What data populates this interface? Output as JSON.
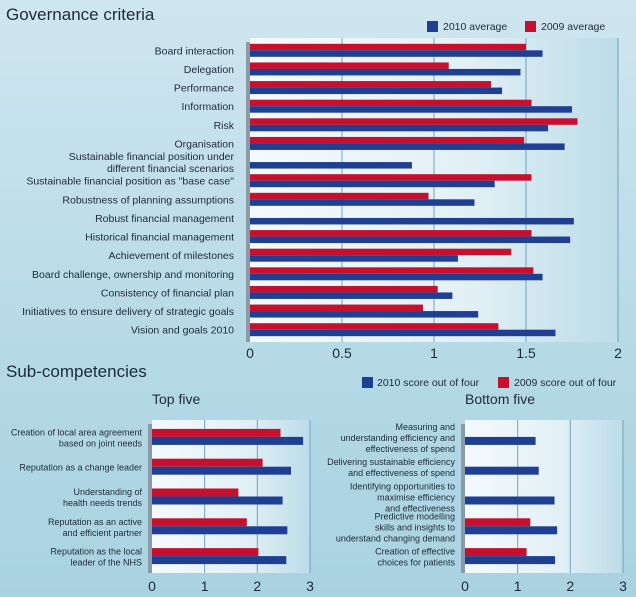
{
  "colors": {
    "2010": "#1f3f93",
    "2009": "#c8102e"
  },
  "chart_data": [
    {
      "type": "bar",
      "orientation": "horizontal",
      "title": "Governance criteria",
      "legend": [
        "2010 average",
        "2009 average"
      ],
      "legend_position": "top-right",
      "xlim": [
        0,
        2
      ],
      "xticks": [
        "0",
        "0.5",
        "1",
        "1.5",
        "2"
      ],
      "grid": true,
      "categories": [
        "Board interaction",
        "Delegation",
        "Performance",
        "Information",
        "Risk",
        "Organisation",
        "Sustainable financial position under|different financial scenarios",
        "Sustainable financial position as \"base case\"",
        "Robustness of planning assumptions",
        "Robust financial management",
        "Historical financial management",
        "Achievement of milestones",
        "Board challenge, ownership and monitoring",
        "Consistency of financial plan",
        "Initiatives to ensure delivery of strategic goals",
        "Vision and goals 2010"
      ],
      "series": [
        {
          "name": "2010 average",
          "values": [
            1.59,
            1.47,
            1.37,
            1.75,
            1.62,
            1.71,
            0.88,
            1.33,
            1.22,
            1.76,
            1.74,
            1.13,
            1.59,
            1.1,
            1.24,
            1.66
          ]
        },
        {
          "name": "2009 average",
          "values": [
            1.5,
            1.08,
            1.31,
            1.53,
            1.78,
            1.49,
            null,
            1.53,
            0.97,
            null,
            1.53,
            1.42,
            1.54,
            1.02,
            0.94,
            1.35
          ]
        }
      ]
    },
    {
      "type": "bar",
      "orientation": "horizontal",
      "section_title": "Sub-competencies",
      "title": "Top five",
      "legend": [
        "2010 score out of four",
        "2009 score out of four"
      ],
      "legend_position": "top-right",
      "xlim": [
        0,
        3
      ],
      "xticks": [
        "0",
        "1",
        "2",
        "3"
      ],
      "grid": true,
      "categories": [
        "Creation of local area agreement|based on joint needs",
        "Reputation as a change leader",
        "Understanding of|health needs trends",
        "Reputation as an active|and efficient partner",
        "Reputation as the local|leader of the NHS"
      ],
      "series": [
        {
          "name": "2010 score out of four",
          "values": [
            2.87,
            2.64,
            2.48,
            2.57,
            2.55
          ]
        },
        {
          "name": "2009 score out of four",
          "values": [
            2.44,
            2.1,
            1.64,
            1.8,
            2.02
          ]
        }
      ]
    },
    {
      "type": "bar",
      "orientation": "horizontal",
      "title": "Bottom five",
      "xlim": [
        0,
        3
      ],
      "xticks": [
        "0",
        "1",
        "2",
        "3"
      ],
      "grid": true,
      "categories": [
        "Measuring and|understanding efficiency and|effectiveness of spend",
        "Delivering sustainable efficiency|and effectiveness of spend",
        "Identifying opportunities to|maximise efficiency|and effectiveness",
        "Predictive modelling|skills and insights to|understand changing demand",
        "Creation of effective|choices for patients"
      ],
      "series": [
        {
          "name": "2010 score out of four",
          "values": [
            1.34,
            1.4,
            1.7,
            1.75,
            1.71
          ]
        },
        {
          "name": "2009 score out of four",
          "values": [
            null,
            null,
            null,
            1.24,
            1.17
          ]
        }
      ]
    }
  ]
}
